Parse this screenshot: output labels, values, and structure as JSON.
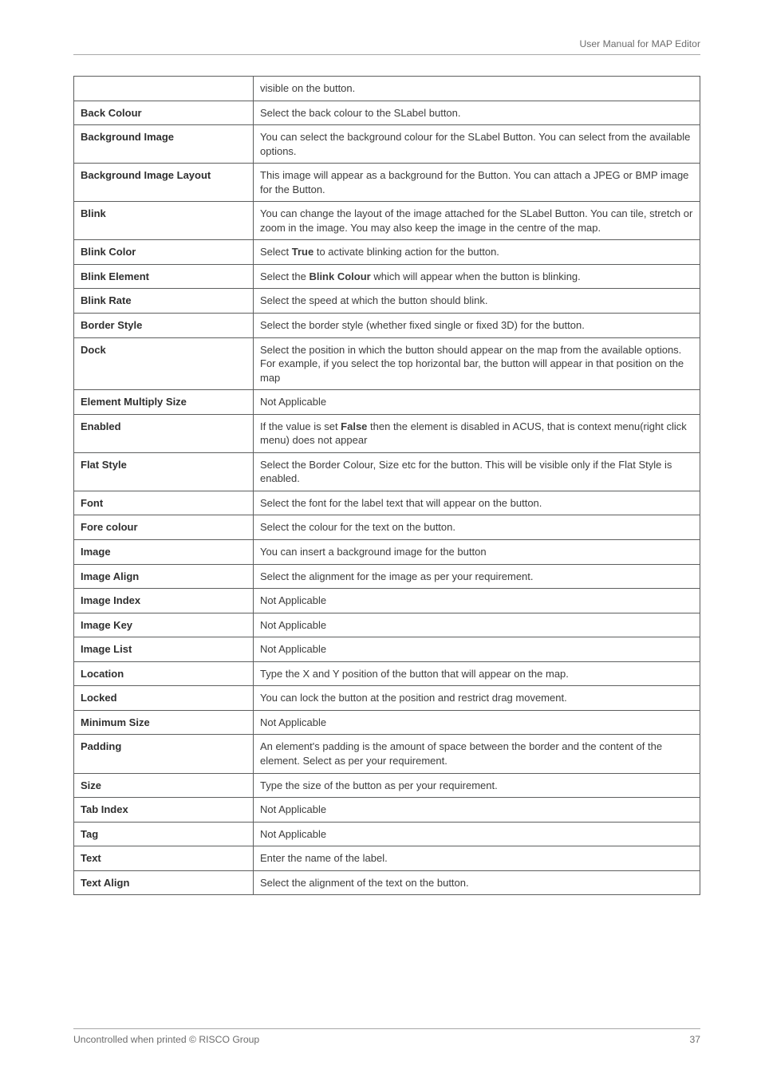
{
  "header": {
    "title": "User Manual for MAP Editor"
  },
  "rows": [
    {
      "label": "",
      "desc": "visible on the button."
    },
    {
      "label": "Back Colour",
      "desc": "Select the back colour to the SLabel button."
    },
    {
      "label": "Background Image",
      "desc": "You can select the background colour for the SLabel Button. You can select from the available options."
    },
    {
      "label": "Background Image Layout",
      "desc": "This image will appear as a background for the Button. You can attach a JPEG or BMP image for the Button."
    },
    {
      "label": "Blink",
      "desc": "You can change the layout of the image attached for the SLabel Button. You can tile, stretch or zoom in the image. You may also keep the image in the centre of the map."
    },
    {
      "label": "Blink Color",
      "desc_parts": [
        "Select ",
        {
          "b": "True"
        },
        " to activate blinking action for the button."
      ]
    },
    {
      "label": "Blink Element",
      "desc_parts": [
        "Select the ",
        {
          "b": "Blink Colour"
        },
        " which will appear when the button is blinking."
      ]
    },
    {
      "label": "Blink Rate",
      "desc": "Select the speed at which the button should blink."
    },
    {
      "label": "Border Style",
      "desc": "Select the border style (whether fixed single or fixed 3D) for the button."
    },
    {
      "label": "Dock",
      "desc": "Select the position in which the button should appear on the map from the available options. For example, if you select the top horizontal bar, the button will appear in that position on the map"
    },
    {
      "label": "Element Multiply Size",
      "desc": "Not Applicable"
    },
    {
      "label": "Enabled",
      "desc_parts": [
        "If the value is set ",
        {
          "b": "False"
        },
        " then the element is disabled in ACUS, that is context menu(right click menu) does not appear"
      ]
    },
    {
      "label": "Flat Style",
      "desc": "Select the Border Colour, Size etc for the button. This will be visible only if the Flat Style is enabled."
    },
    {
      "label": "Font",
      "desc": "Select the font for the label text that will appear on the button."
    },
    {
      "label": "Fore colour",
      "desc": "Select the colour for the text on the button."
    },
    {
      "label": "Image",
      "desc": "You can insert a background image for the button"
    },
    {
      "label": "Image Align",
      "desc": "Select the alignment for the image as per your requirement."
    },
    {
      "label": "Image Index",
      "desc": "Not Applicable"
    },
    {
      "label": "Image Key",
      "desc": "Not Applicable"
    },
    {
      "label": "Image List",
      "desc": "Not Applicable"
    },
    {
      "label": "Location",
      "desc": "Type the X and Y position of the button that will appear on the map."
    },
    {
      "label": "Locked",
      "desc": "You can lock the button at the position and restrict drag movement."
    },
    {
      "label": "Minimum Size",
      "desc": "Not Applicable"
    },
    {
      "label": "Padding",
      "desc": "An element's padding is the amount of space between the border and the content of the element. Select as per your requirement."
    },
    {
      "label": "Size",
      "desc": "Type the size of the button as per your requirement."
    },
    {
      "label": "Tab Index",
      "desc": "Not Applicable"
    },
    {
      "label": "Tag",
      "desc": "Not Applicable"
    },
    {
      "label": "Text",
      "desc": "Enter the name of the label."
    },
    {
      "label": "Text Align",
      "desc": "Select the alignment of the text on the button."
    }
  ],
  "footer": {
    "left": "Uncontrolled when printed © RISCO Group",
    "page": "37"
  }
}
